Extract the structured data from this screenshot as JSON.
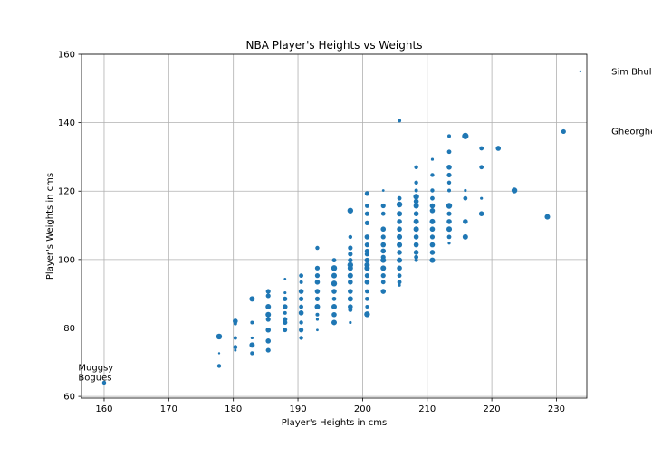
{
  "chart_data": {
    "type": "scatter",
    "title": "NBA Player's Heights vs Weights",
    "xlabel": "Player's Heights in cms",
    "ylabel": "Player's Weights in cms",
    "xlim": [
      156.5,
      234.7
    ],
    "ylim": [
      59.5,
      160
    ],
    "xticks": [
      160,
      170,
      180,
      190,
      200,
      210,
      220,
      230
    ],
    "yticks": [
      60,
      80,
      100,
      120,
      140,
      160
    ],
    "grid": true,
    "color": "#1f77b4",
    "points": [
      {
        "x": 160.0,
        "y": 64.0,
        "s": 2.2
      },
      {
        "x": 177.8,
        "y": 77.5,
        "s": 3.2
      },
      {
        "x": 177.8,
        "y": 72.6,
        "s": 1.2
      },
      {
        "x": 177.8,
        "y": 68.9,
        "s": 2.2
      },
      {
        "x": 180.3,
        "y": 82.0,
        "s": 2.8
      },
      {
        "x": 180.3,
        "y": 81.3,
        "s": 2.0
      },
      {
        "x": 180.3,
        "y": 77.1,
        "s": 2.0
      },
      {
        "x": 180.3,
        "y": 74.4,
        "s": 2.4
      },
      {
        "x": 180.3,
        "y": 73.5,
        "s": 1.5
      },
      {
        "x": 182.9,
        "y": 88.5,
        "s": 3.0
      },
      {
        "x": 182.9,
        "y": 81.6,
        "s": 2.0
      },
      {
        "x": 182.9,
        "y": 77.1,
        "s": 1.6
      },
      {
        "x": 182.9,
        "y": 75.0,
        "s": 3.0
      },
      {
        "x": 182.9,
        "y": 72.6,
        "s": 2.2
      },
      {
        "x": 185.4,
        "y": 90.7,
        "s": 2.6
      },
      {
        "x": 185.4,
        "y": 89.4,
        "s": 2.6
      },
      {
        "x": 185.4,
        "y": 86.2,
        "s": 3.0
      },
      {
        "x": 185.4,
        "y": 83.9,
        "s": 3.0
      },
      {
        "x": 185.4,
        "y": 82.5,
        "s": 2.6
      },
      {
        "x": 185.4,
        "y": 79.4,
        "s": 2.8
      },
      {
        "x": 185.4,
        "y": 76.2,
        "s": 2.8
      },
      {
        "x": 185.4,
        "y": 73.5,
        "s": 2.6
      },
      {
        "x": 188.0,
        "y": 94.3,
        "s": 1.4
      },
      {
        "x": 188.0,
        "y": 90.3,
        "s": 1.6
      },
      {
        "x": 188.0,
        "y": 88.5,
        "s": 2.6
      },
      {
        "x": 188.0,
        "y": 86.2,
        "s": 2.8
      },
      {
        "x": 188.0,
        "y": 84.4,
        "s": 2.0
      },
      {
        "x": 188.0,
        "y": 82.5,
        "s": 2.6
      },
      {
        "x": 188.0,
        "y": 81.6,
        "s": 2.6
      },
      {
        "x": 188.0,
        "y": 79.4,
        "s": 2.4
      },
      {
        "x": 190.5,
        "y": 95.3,
        "s": 2.4
      },
      {
        "x": 190.5,
        "y": 93.4,
        "s": 2.0
      },
      {
        "x": 190.5,
        "y": 90.7,
        "s": 2.8
      },
      {
        "x": 190.5,
        "y": 88.5,
        "s": 2.6
      },
      {
        "x": 190.5,
        "y": 86.2,
        "s": 2.4
      },
      {
        "x": 190.5,
        "y": 84.4,
        "s": 2.8
      },
      {
        "x": 190.5,
        "y": 81.6,
        "s": 2.2
      },
      {
        "x": 190.5,
        "y": 79.4,
        "s": 2.6
      },
      {
        "x": 190.5,
        "y": 77.1,
        "s": 2.2
      },
      {
        "x": 193.0,
        "y": 103.4,
        "s": 2.2
      },
      {
        "x": 193.0,
        "y": 97.5,
        "s": 2.6
      },
      {
        "x": 193.0,
        "y": 95.3,
        "s": 2.6
      },
      {
        "x": 193.0,
        "y": 93.4,
        "s": 2.8
      },
      {
        "x": 193.0,
        "y": 90.7,
        "s": 2.8
      },
      {
        "x": 193.0,
        "y": 88.5,
        "s": 2.6
      },
      {
        "x": 193.0,
        "y": 86.2,
        "s": 3.0
      },
      {
        "x": 193.0,
        "y": 83.9,
        "s": 2.0
      },
      {
        "x": 193.0,
        "y": 82.5,
        "s": 1.6
      },
      {
        "x": 193.0,
        "y": 79.4,
        "s": 1.4
      },
      {
        "x": 195.6,
        "y": 99.8,
        "s": 2.4
      },
      {
        "x": 195.6,
        "y": 97.5,
        "s": 3.2
      },
      {
        "x": 195.6,
        "y": 95.3,
        "s": 3.0
      },
      {
        "x": 195.6,
        "y": 93.0,
        "s": 3.2
      },
      {
        "x": 195.6,
        "y": 90.7,
        "s": 2.8
      },
      {
        "x": 195.6,
        "y": 88.5,
        "s": 2.4
      },
      {
        "x": 195.6,
        "y": 86.2,
        "s": 3.0
      },
      {
        "x": 195.6,
        "y": 83.9,
        "s": 2.8
      },
      {
        "x": 195.6,
        "y": 81.6,
        "s": 3.0
      },
      {
        "x": 198.1,
        "y": 114.3,
        "s": 3.2
      },
      {
        "x": 198.1,
        "y": 106.6,
        "s": 2.2
      },
      {
        "x": 198.1,
        "y": 103.4,
        "s": 2.6
      },
      {
        "x": 198.1,
        "y": 101.6,
        "s": 2.6
      },
      {
        "x": 198.1,
        "y": 99.8,
        "s": 2.6
      },
      {
        "x": 198.1,
        "y": 98.4,
        "s": 3.2
      },
      {
        "x": 198.1,
        "y": 97.5,
        "s": 3.0
      },
      {
        "x": 198.1,
        "y": 95.3,
        "s": 3.0
      },
      {
        "x": 198.1,
        "y": 93.4,
        "s": 2.8
      },
      {
        "x": 198.1,
        "y": 90.7,
        "s": 2.8
      },
      {
        "x": 198.1,
        "y": 88.5,
        "s": 3.0
      },
      {
        "x": 198.1,
        "y": 86.2,
        "s": 2.8
      },
      {
        "x": 198.1,
        "y": 85.3,
        "s": 2.4
      },
      {
        "x": 198.1,
        "y": 81.6,
        "s": 1.6
      },
      {
        "x": 200.7,
        "y": 119.3,
        "s": 2.6
      },
      {
        "x": 200.7,
        "y": 115.7,
        "s": 2.4
      },
      {
        "x": 200.7,
        "y": 113.4,
        "s": 2.6
      },
      {
        "x": 200.7,
        "y": 110.7,
        "s": 2.6
      },
      {
        "x": 200.7,
        "y": 106.6,
        "s": 2.8
      },
      {
        "x": 200.7,
        "y": 104.3,
        "s": 2.6
      },
      {
        "x": 200.7,
        "y": 102.5,
        "s": 2.6
      },
      {
        "x": 200.7,
        "y": 101.6,
        "s": 2.6
      },
      {
        "x": 200.7,
        "y": 99.8,
        "s": 2.8
      },
      {
        "x": 200.7,
        "y": 98.4,
        "s": 3.0
      },
      {
        "x": 200.7,
        "y": 97.5,
        "s": 3.0
      },
      {
        "x": 200.7,
        "y": 95.3,
        "s": 2.6
      },
      {
        "x": 200.7,
        "y": 93.4,
        "s": 2.8
      },
      {
        "x": 200.7,
        "y": 90.7,
        "s": 2.4
      },
      {
        "x": 200.7,
        "y": 88.5,
        "s": 2.4
      },
      {
        "x": 200.7,
        "y": 86.2,
        "s": 2.0
      },
      {
        "x": 200.7,
        "y": 84.0,
        "s": 3.2
      },
      {
        "x": 203.2,
        "y": 120.2,
        "s": 1.4
      },
      {
        "x": 203.2,
        "y": 115.7,
        "s": 2.6
      },
      {
        "x": 203.2,
        "y": 113.4,
        "s": 2.4
      },
      {
        "x": 203.2,
        "y": 108.9,
        "s": 2.8
      },
      {
        "x": 203.2,
        "y": 106.6,
        "s": 2.6
      },
      {
        "x": 203.2,
        "y": 104.3,
        "s": 2.8
      },
      {
        "x": 203.2,
        "y": 102.5,
        "s": 2.8
      },
      {
        "x": 203.2,
        "y": 100.7,
        "s": 2.6
      },
      {
        "x": 203.2,
        "y": 99.8,
        "s": 3.0
      },
      {
        "x": 203.2,
        "y": 97.5,
        "s": 3.0
      },
      {
        "x": 203.2,
        "y": 95.3,
        "s": 2.6
      },
      {
        "x": 203.2,
        "y": 93.4,
        "s": 2.4
      },
      {
        "x": 203.2,
        "y": 90.7,
        "s": 2.8
      },
      {
        "x": 205.7,
        "y": 140.6,
        "s": 2.0
      },
      {
        "x": 205.7,
        "y": 117.9,
        "s": 2.4
      },
      {
        "x": 205.7,
        "y": 116.1,
        "s": 3.2
      },
      {
        "x": 205.7,
        "y": 113.4,
        "s": 3.0
      },
      {
        "x": 205.7,
        "y": 111.1,
        "s": 2.8
      },
      {
        "x": 205.7,
        "y": 108.9,
        "s": 2.8
      },
      {
        "x": 205.7,
        "y": 106.6,
        "s": 3.0
      },
      {
        "x": 205.7,
        "y": 104.3,
        "s": 3.0
      },
      {
        "x": 205.7,
        "y": 102.1,
        "s": 2.8
      },
      {
        "x": 205.7,
        "y": 99.8,
        "s": 3.0
      },
      {
        "x": 205.7,
        "y": 97.5,
        "s": 2.8
      },
      {
        "x": 205.7,
        "y": 95.3,
        "s": 2.4
      },
      {
        "x": 205.7,
        "y": 93.4,
        "s": 2.4
      },
      {
        "x": 205.7,
        "y": 92.5,
        "s": 1.6
      },
      {
        "x": 208.3,
        "y": 127.0,
        "s": 2.2
      },
      {
        "x": 208.3,
        "y": 122.5,
        "s": 2.2
      },
      {
        "x": 208.3,
        "y": 120.2,
        "s": 2.0
      },
      {
        "x": 208.3,
        "y": 118.4,
        "s": 3.2
      },
      {
        "x": 208.3,
        "y": 117.0,
        "s": 2.8
      },
      {
        "x": 208.3,
        "y": 115.7,
        "s": 3.0
      },
      {
        "x": 208.3,
        "y": 113.4,
        "s": 2.8
      },
      {
        "x": 208.3,
        "y": 111.1,
        "s": 3.0
      },
      {
        "x": 208.3,
        "y": 108.9,
        "s": 3.0
      },
      {
        "x": 208.3,
        "y": 106.6,
        "s": 2.8
      },
      {
        "x": 208.3,
        "y": 104.3,
        "s": 2.8
      },
      {
        "x": 208.3,
        "y": 102.1,
        "s": 2.8
      },
      {
        "x": 208.3,
        "y": 100.7,
        "s": 2.4
      },
      {
        "x": 208.3,
        "y": 99.8,
        "s": 2.0
      },
      {
        "x": 210.8,
        "y": 129.3,
        "s": 1.6
      },
      {
        "x": 210.8,
        "y": 124.7,
        "s": 2.2
      },
      {
        "x": 210.8,
        "y": 120.2,
        "s": 2.2
      },
      {
        "x": 210.8,
        "y": 117.9,
        "s": 2.4
      },
      {
        "x": 210.8,
        "y": 115.7,
        "s": 2.8
      },
      {
        "x": 210.8,
        "y": 114.3,
        "s": 2.8
      },
      {
        "x": 210.8,
        "y": 111.1,
        "s": 3.0
      },
      {
        "x": 210.8,
        "y": 108.9,
        "s": 2.8
      },
      {
        "x": 210.8,
        "y": 106.6,
        "s": 2.6
      },
      {
        "x": 210.8,
        "y": 104.3,
        "s": 2.8
      },
      {
        "x": 210.8,
        "y": 102.1,
        "s": 2.8
      },
      {
        "x": 210.8,
        "y": 99.8,
        "s": 3.0
      },
      {
        "x": 213.4,
        "y": 136.1,
        "s": 2.0
      },
      {
        "x": 213.4,
        "y": 131.5,
        "s": 2.4
      },
      {
        "x": 213.4,
        "y": 127.0,
        "s": 2.8
      },
      {
        "x": 213.4,
        "y": 124.7,
        "s": 2.6
      },
      {
        "x": 213.4,
        "y": 122.5,
        "s": 2.2
      },
      {
        "x": 213.4,
        "y": 120.2,
        "s": 2.0
      },
      {
        "x": 213.4,
        "y": 115.7,
        "s": 3.2
      },
      {
        "x": 213.4,
        "y": 113.4,
        "s": 2.6
      },
      {
        "x": 213.4,
        "y": 111.1,
        "s": 2.8
      },
      {
        "x": 213.4,
        "y": 108.9,
        "s": 3.0
      },
      {
        "x": 213.4,
        "y": 106.6,
        "s": 2.4
      },
      {
        "x": 213.4,
        "y": 104.8,
        "s": 1.6
      },
      {
        "x": 215.9,
        "y": 136.1,
        "s": 3.6
      },
      {
        "x": 215.9,
        "y": 120.2,
        "s": 1.6
      },
      {
        "x": 215.9,
        "y": 117.9,
        "s": 2.4
      },
      {
        "x": 215.9,
        "y": 111.1,
        "s": 2.8
      },
      {
        "x": 215.9,
        "y": 106.6,
        "s": 3.0
      },
      {
        "x": 218.4,
        "y": 132.5,
        "s": 2.4
      },
      {
        "x": 218.4,
        "y": 127.0,
        "s": 2.4
      },
      {
        "x": 218.4,
        "y": 117.9,
        "s": 1.6
      },
      {
        "x": 218.4,
        "y": 113.4,
        "s": 2.8
      },
      {
        "x": 221.0,
        "y": 132.5,
        "s": 2.8
      },
      {
        "x": 223.5,
        "y": 120.2,
        "s": 3.2
      },
      {
        "x": 228.6,
        "y": 112.5,
        "s": 3.0
      },
      {
        "x": 231.1,
        "y": 137.4,
        "s": 2.6
      },
      {
        "x": 233.7,
        "y": 155.0,
        "s": 1.2
      }
    ],
    "annotations": [
      {
        "text": "Muggsy",
        "x": 156.0,
        "y": 68.5
      },
      {
        "text": "Bogues",
        "x": 156.0,
        "y": 65.6
      },
      {
        "text": "Sim Bhullar",
        "x": 238.5,
        "y": 155.0
      },
      {
        "text": "Gheorghe Muresan",
        "x": 238.5,
        "y": 137.5
      }
    ]
  }
}
